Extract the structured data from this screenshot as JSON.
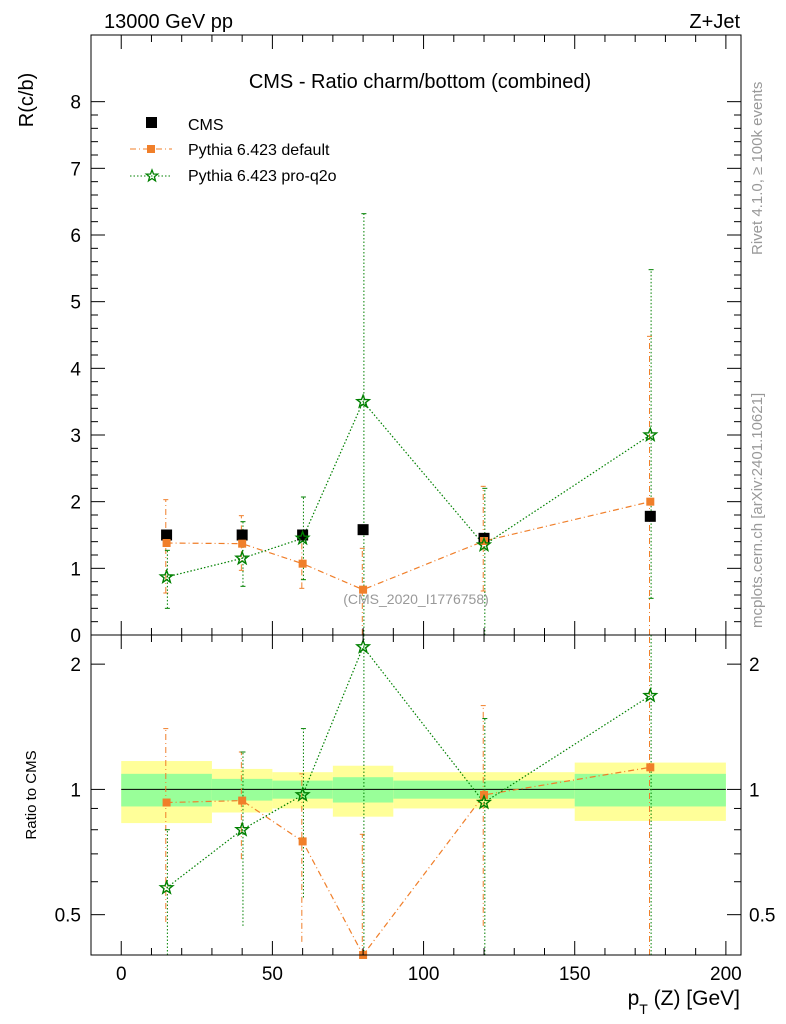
{
  "header": {
    "left": "13000 GeV pp",
    "right": "Z+Jet"
  },
  "side_labels": {
    "rivet": "Rivet 4.1.0, ≥ 100k events",
    "mcplots": "mcplots.cern.ch [arXiv:2401.10621]"
  },
  "chart_data": {
    "type": "scatter",
    "title": "CMS - Ratio charm/bottom (combined)",
    "analysis_id": "(CMS_2020_I1776758)",
    "xlabel_main": "p",
    "xlabel_sub": "T",
    "xlabel_rest": " (Z) [GeV]",
    "ylabel": "R(c/b)",
    "ratio_ylabel": "Ratio to CMS",
    "xlim": [
      -10,
      205
    ],
    "ylim": [
      0,
      9
    ],
    "ratio_ylim": [
      0.4,
      2.35
    ],
    "x_ticks": [
      0,
      50,
      100,
      150,
      200
    ],
    "x_tick_labels": [
      "0",
      "50",
      "100",
      "150",
      "200"
    ],
    "y_ticks": [
      0,
      1,
      2,
      3,
      4,
      5,
      6,
      7,
      8
    ],
    "y_tick_labels": [
      "0",
      "1",
      "2",
      "3",
      "4",
      "5",
      "6",
      "7",
      "8"
    ],
    "ratio_ticks": [
      0.5,
      1,
      2
    ],
    "ratio_tick_labels": [
      "0.5",
      "1",
      "2"
    ],
    "bins": [
      [
        0,
        30
      ],
      [
        30,
        50
      ],
      [
        50,
        70
      ],
      [
        70,
        90
      ],
      [
        90,
        150
      ],
      [
        150,
        200
      ]
    ],
    "data_band_inner": [
      0.09,
      0.06,
      0.05,
      0.07,
      0.05,
      0.09
    ],
    "data_band_outer": [
      0.17,
      0.12,
      0.1,
      0.14,
      0.1,
      0.16
    ],
    "series": [
      {
        "name": "CMS",
        "color": "#000000",
        "marker": "square",
        "line": "none",
        "x": [
          15,
          40,
          60,
          80,
          120,
          175
        ],
        "values": [
          1.5,
          1.5,
          1.5,
          1.58,
          1.45,
          1.78
        ],
        "err": [
          0,
          0,
          0,
          0,
          0,
          0
        ]
      },
      {
        "name": "Pythia 6.423 default",
        "color": "#f07f2a",
        "marker": "square",
        "line": "dashdot",
        "x": [
          15,
          40,
          60,
          80,
          120,
          175
        ],
        "values": [
          1.38,
          1.37,
          1.07,
          0.68,
          1.41,
          2.0
        ],
        "err_lo": [
          0.75,
          0.4,
          0.37,
          0.68,
          0.75,
          2.0
        ],
        "err_hi": [
          0.65,
          0.42,
          0.37,
          0.62,
          0.82,
          2.48
        ],
        "ratio": [
          0.93,
          0.94,
          0.75,
          0.38,
          0.97,
          1.13
        ],
        "ratio_lo": [
          0.45,
          0.26,
          0.32,
          0.38,
          0.5,
          1.13
        ],
        "ratio_hi": [
          0.47,
          0.29,
          0.34,
          0.4,
          0.62,
          1.4
        ]
      },
      {
        "name": "Pythia 6.423 pro-q2o",
        "color": "#008000",
        "marker": "star",
        "line": "dotted",
        "x": [
          15,
          40,
          60,
          80,
          120,
          175
        ],
        "values": [
          0.87,
          1.15,
          1.45,
          3.5,
          1.35,
          3.0
        ],
        "err_lo": [
          0.47,
          0.42,
          0.62,
          3.5,
          1.35,
          2.45
        ],
        "err_hi": [
          0.4,
          0.55,
          0.62,
          2.82,
          0.85,
          2.48
        ],
        "ratio": [
          0.58,
          0.8,
          0.97,
          2.2,
          0.93,
          1.68
        ],
        "ratio_lo": [
          0.25,
          0.33,
          0.42,
          2.2,
          0.57,
          1.3
        ],
        "ratio_hi": [
          0.22,
          0.43,
          0.43,
          1.8,
          0.55,
          1.4
        ]
      }
    ]
  }
}
